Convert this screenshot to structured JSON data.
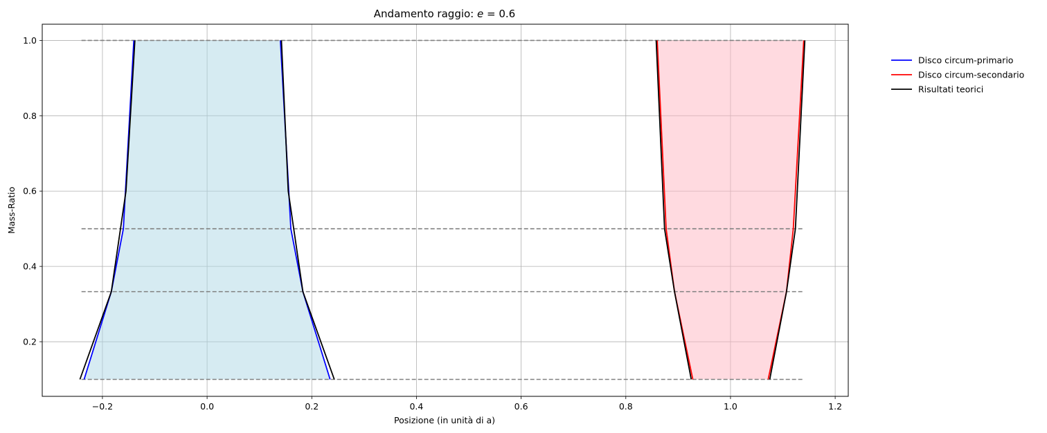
{
  "chart_data": {
    "type": "line",
    "title_prefix": "Andamento raggio: ",
    "title_var": "e",
    "title_suffix": " = 0.6",
    "xlabel": "Posizione (in unità di a)",
    "ylabel": "Mass-Ratio",
    "xlim": [
      -0.315,
      1.225
    ],
    "ylim": [
      0.055,
      1.043
    ],
    "x_ticks": [
      -0.2,
      0.0,
      0.2,
      0.4,
      0.6,
      0.8,
      1.0,
      1.2
    ],
    "x_tick_labels": [
      "−0.2",
      "0.0",
      "0.2",
      "0.4",
      "0.6",
      "0.8",
      "1.0",
      "1.2"
    ],
    "y_ticks": [
      0.2,
      0.4,
      0.6,
      0.8,
      1.0
    ],
    "y_tick_labels": [
      "0.2",
      "0.4",
      "0.6",
      "0.8",
      "1.0"
    ],
    "grid": true,
    "legend_position": "outside-right",
    "reference_lines": {
      "y": [
        1.0,
        0.5,
        0.333,
        0.1
      ],
      "x_range": [
        -0.24,
        1.14
      ],
      "style": "dashed",
      "color": "#808080"
    },
    "series": [
      {
        "name": "Disco circum-primario",
        "color": "#0000ff",
        "fill": "#add8e6",
        "fill_opacity": 0.5,
        "mass_ratio": [
          0.1,
          0.333,
          0.5,
          1.0
        ],
        "left_edge": [
          -0.235,
          -0.183,
          -0.16,
          -0.14
        ],
        "right_edge": [
          0.235,
          0.183,
          0.16,
          0.14
        ]
      },
      {
        "name": "Disco circum-secondario",
        "color": "#ff0000",
        "fill": "#ffb6c1",
        "fill_opacity": 0.5,
        "mass_ratio": [
          0.1,
          0.333,
          0.5,
          1.0
        ],
        "left_edge": [
          0.928,
          0.893,
          0.877,
          0.86
        ],
        "right_edge": [
          1.072,
          1.107,
          1.12,
          1.14
        ]
      },
      {
        "name": "Risultati teorici",
        "color": "#000000",
        "lines": [
          {
            "x": [
              -0.243,
              -0.183,
              -0.155,
              -0.138
            ],
            "y": [
              0.1,
              0.333,
              0.6,
              1.0
            ]
          },
          {
            "x": [
              0.243,
              0.183,
              0.155,
              0.142
            ],
            "y": [
              0.1,
              0.333,
              0.6,
              1.0
            ]
          },
          {
            "x": [
              0.925,
              0.893,
              0.874,
              0.858
            ],
            "y": [
              0.1,
              0.333,
              0.5,
              1.0
            ]
          },
          {
            "x": [
              1.075,
              1.107,
              1.124,
              1.142
            ],
            "y": [
              0.1,
              0.333,
              0.5,
              1.0
            ]
          }
        ]
      }
    ]
  }
}
